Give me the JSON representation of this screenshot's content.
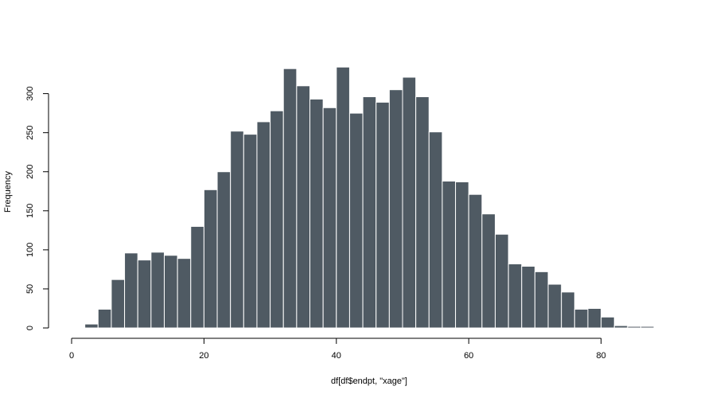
{
  "chart_data": {
    "type": "bar",
    "title": "",
    "xlabel": "df[df$endpt, \"xage\"]",
    "ylabel": "Frequency",
    "bin_width": 2,
    "bins_start": [
      2,
      4,
      6,
      8,
      10,
      12,
      14,
      16,
      18,
      20,
      22,
      24,
      26,
      28,
      30,
      32,
      34,
      36,
      38,
      40,
      42,
      44,
      46,
      48,
      50,
      52,
      54,
      56,
      58,
      60,
      62,
      64,
      66,
      68,
      70,
      72,
      74,
      76,
      78,
      80,
      82,
      84,
      86,
      88
    ],
    "values": [
      5,
      24,
      62,
      96,
      87,
      97,
      93,
      89,
      130,
      177,
      200,
      252,
      248,
      264,
      278,
      332,
      310,
      293,
      282,
      334,
      275,
      296,
      289,
      305,
      321,
      296,
      251,
      188,
      187,
      171,
      146,
      120,
      82,
      79,
      72,
      56,
      46,
      24,
      25,
      14,
      3,
      2,
      2,
      1
    ],
    "xlim": [
      0,
      90
    ],
    "ylim": [
      0,
      340
    ],
    "x_ticks": [
      0,
      20,
      40,
      60,
      80
    ],
    "y_ticks": [
      0,
      50,
      100,
      150,
      200,
      250,
      300
    ],
    "bar_color": "#4f5a63",
    "grid": false
  }
}
